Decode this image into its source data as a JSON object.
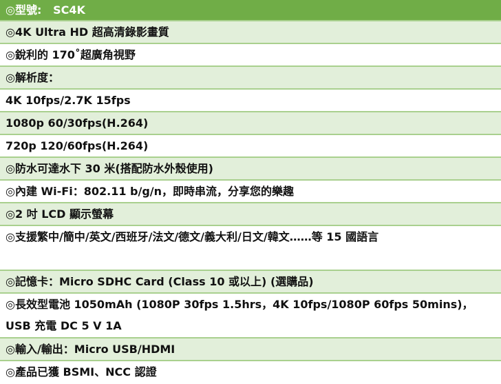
{
  "header": {
    "label": "◎型號:",
    "model": "SC4K"
  },
  "rows": [
    "◎4K Ultra HD  超高清錄影畫質",
    "◎銳利的 170˚超廣角視野",
    "◎解析度：",
    "4K 10fps/2.7K 15fps",
    "1080p 60/30fps(H.264)",
    "720p 120/60fps(H.264)",
    "◎防水可達水下 30 米(搭配防水外殼使用)",
    "◎內建 Wi-Fi：802.11 b/g/n，即時串流，分享您的樂趣",
    "◎2 吋 LCD 顯示螢幕",
    "◎支援繁中/簡中/英文/西班牙/法文/德文/義大利/日文/韓文……等 15 國語言",
    "◎記憶卡：Micro SDHC Card (Class 10  或以上) (選購品)",
    "◎長效型電池 1050mAh (1080P 30fps 1.5hrs，4K 10fps/1080P 60fps 50mins)，USB 充電 DC 5 V 1A",
    "◎輸入/輸出：Micro USB/HDMI",
    "◎產品已獲 BSMI、NCC 認證"
  ],
  "colors": {
    "header_bg": "#70ad47",
    "row_alt": "#e2efda",
    "border": "#a9d08e"
  }
}
